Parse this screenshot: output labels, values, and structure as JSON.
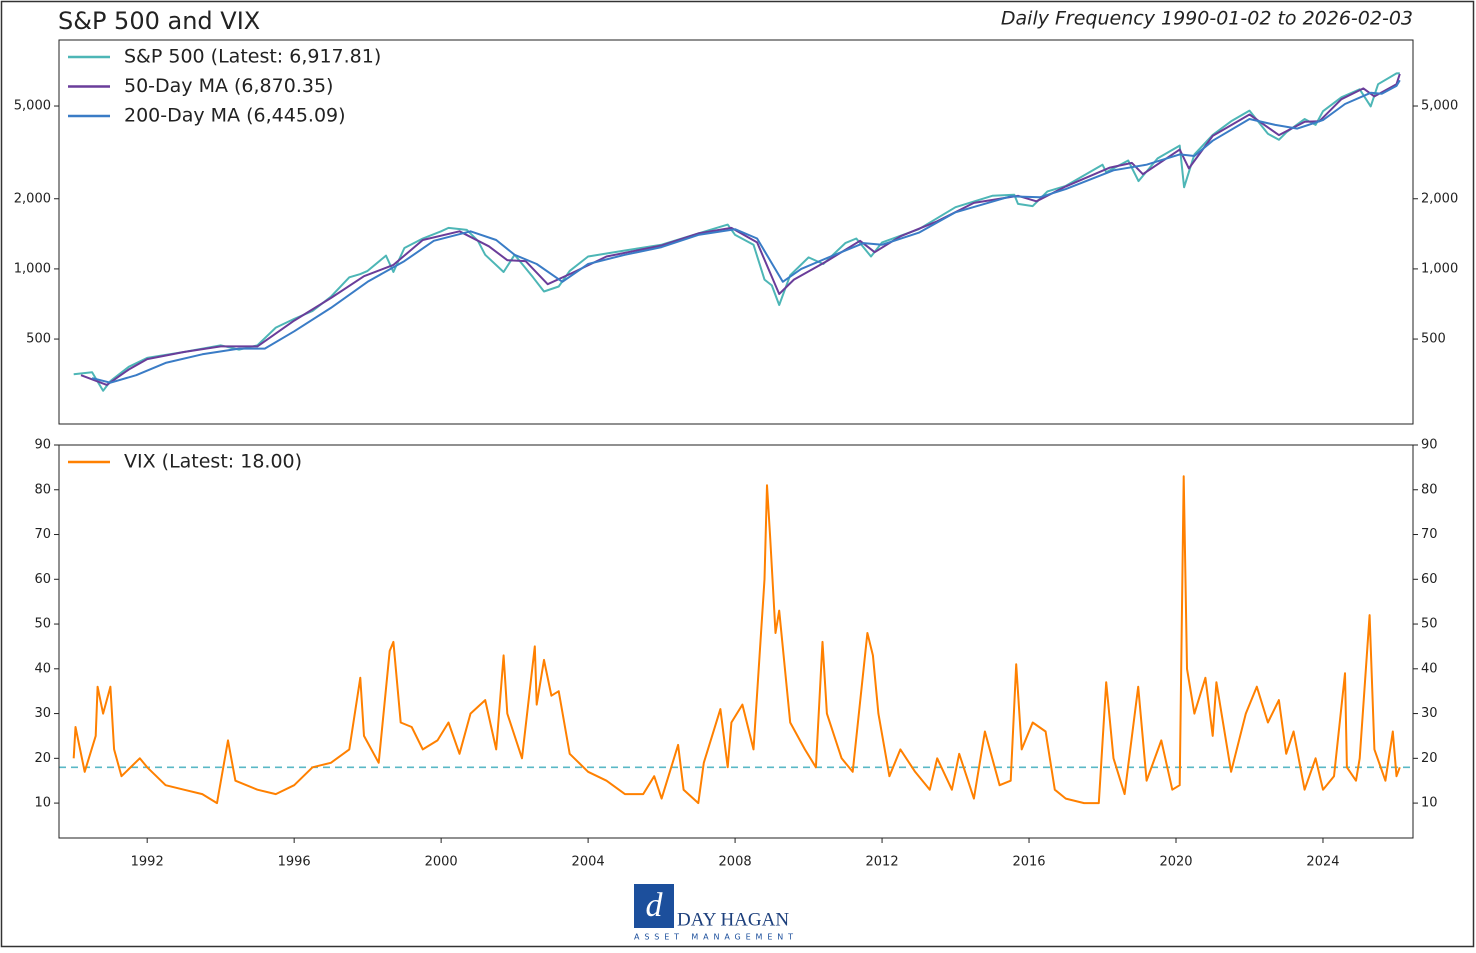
{
  "chart_data": [
    {
      "type": "line",
      "title": "S&P 500 and VIX",
      "subtitle": "Daily Frequency 1990-01-02 to 2026-02-03",
      "log_scale": true,
      "legend": "upper left",
      "xlim": [
        1989.6,
        2026.45
      ],
      "ylim": [
        216,
        9600
      ],
      "yticks": [
        500,
        {
          "value": 1000,
          "label": "1,000"
        },
        {
          "value": 2000,
          "label": "2,000"
        },
        {
          "value": 5000,
          "label": "5,000"
        }
      ],
      "series": [
        {
          "name": "S&P 500 (Latest: 6,917.81)",
          "color": "#4db6b6",
          "x": [
            1990.0,
            1990.5,
            1990.8,
            1991.0,
            1991.5,
            1992.0,
            1993.0,
            1994.0,
            1994.5,
            1995.0,
            1995.5,
            1996.0,
            1996.5,
            1997.0,
            1997.5,
            1997.8,
            1998.0,
            1998.5,
            1998.7,
            1999.0,
            1999.5,
            2000.0,
            2000.2,
            2000.7,
            2001.0,
            2001.2,
            2001.7,
            2002.0,
            2002.5,
            2002.8,
            2003.2,
            2003.5,
            2004.0,
            2005.0,
            2006.0,
            2007.0,
            2007.8,
            2008.0,
            2008.5,
            2008.8,
            2009.0,
            2009.2,
            2009.5,
            2010.0,
            2010.4,
            2011.0,
            2011.3,
            2011.7,
            2012.0,
            2013.0,
            2014.0,
            2015.0,
            2015.6,
            2015.7,
            2016.1,
            2016.5,
            2017.0,
            2018.0,
            2018.1,
            2018.7,
            2018.98,
            2019.5,
            2020.1,
            2020.22,
            2020.5,
            2021.0,
            2021.5,
            2022.0,
            2022.5,
            2022.8,
            2023.0,
            2023.5,
            2023.8,
            2024.0,
            2024.5,
            2025.0,
            2025.3,
            2025.5,
            2026.0,
            2026.09
          ],
          "values": [
            353,
            360,
            300,
            330,
            380,
            415,
            440,
            470,
            450,
            470,
            560,
            610,
            660,
            760,
            920,
            950,
            980,
            1140,
            970,
            1230,
            1350,
            1450,
            1500,
            1470,
            1320,
            1150,
            970,
            1150,
            920,
            800,
            840,
            980,
            1130,
            1200,
            1270,
            1420,
            1550,
            1400,
            1270,
            900,
            850,
            700,
            940,
            1120,
            1050,
            1290,
            1350,
            1130,
            1300,
            1480,
            1840,
            2060,
            2080,
            1900,
            1860,
            2150,
            2270,
            2800,
            2600,
            2920,
            2380,
            2980,
            3380,
            2240,
            3100,
            3760,
            4300,
            4780,
            3800,
            3580,
            3850,
            4400,
            4150,
            4750,
            5450,
            5900,
            4980,
            6200,
            6900,
            6917.81
          ]
        },
        {
          "name": "50-Day MA (6,870.35)",
          "color": "#6a3d9a",
          "x": [
            1990.2,
            1990.9,
            1991.5,
            1992.0,
            1993.0,
            1994.0,
            1995.0,
            1996.0,
            1997.0,
            1997.9,
            1998.7,
            1999.5,
            2000.5,
            2001.3,
            2001.8,
            2002.3,
            2002.9,
            2003.5,
            2004.5,
            2006.0,
            2007.0,
            2007.9,
            2008.6,
            2009.2,
            2009.6,
            2010.5,
            2011.4,
            2011.8,
            2012.5,
            2013.5,
            2014.5,
            2015.7,
            2016.2,
            2017.0,
            2018.2,
            2018.8,
            2019.1,
            2020.1,
            2020.35,
            2021.0,
            2022.0,
            2022.8,
            2023.5,
            2023.9,
            2024.5,
            2025.1,
            2025.4,
            2026.0,
            2026.09
          ],
          "values": [
            350,
            318,
            370,
            410,
            440,
            465,
            465,
            600,
            750,
            930,
            1040,
            1330,
            1450,
            1250,
            1090,
            1080,
            860,
            950,
            1130,
            1260,
            1420,
            1500,
            1300,
            780,
            900,
            1080,
            1320,
            1180,
            1380,
            1600,
            1920,
            2060,
            1950,
            2260,
            2720,
            2850,
            2550,
            3250,
            2700,
            3720,
            4600,
            3750,
            4280,
            4300,
            5350,
            5950,
            5500,
            6200,
            6870.35
          ]
        },
        {
          "name": "200-Day MA (6,445.09)",
          "color": "#3a7cc6",
          "x": [
            1990.5,
            1991.0,
            1991.7,
            1992.5,
            1993.5,
            1994.5,
            1995.2,
            1996.0,
            1997.0,
            1998.0,
            1999.0,
            1999.8,
            2000.8,
            2001.5,
            2002.0,
            2002.6,
            2003.3,
            2004.0,
            2005.0,
            2006.0,
            2007.0,
            2008.0,
            2008.6,
            2009.3,
            2009.8,
            2010.6,
            2011.5,
            2012.0,
            2013.0,
            2014.0,
            2015.5,
            2016.3,
            2017.0,
            2018.3,
            2019.2,
            2020.1,
            2020.5,
            2021.0,
            2022.0,
            2022.7,
            2023.3,
            2024.0,
            2024.6,
            2025.3,
            2025.6,
            2026.0,
            2026.09
          ],
          "values": [
            340,
            325,
            350,
            395,
            430,
            455,
            455,
            540,
            680,
            880,
            1080,
            1320,
            1450,
            1330,
            1150,
            1050,
            880,
            1050,
            1150,
            1240,
            1400,
            1480,
            1350,
            880,
            1000,
            1130,
            1290,
            1270,
            1430,
            1750,
            2050,
            2030,
            2200,
            2650,
            2800,
            3100,
            3050,
            3550,
            4400,
            4150,
            4000,
            4350,
            5100,
            5700,
            5650,
            6100,
            6445.09
          ]
        }
      ]
    },
    {
      "type": "line",
      "legend": "upper left",
      "xlim": [
        1989.6,
        2026.45
      ],
      "xticks": [
        1992,
        1996,
        2000,
        2004,
        2008,
        2012,
        2016,
        2020,
        2024
      ],
      "ylim": [
        2.2,
        90
      ],
      "yticks": [
        10,
        20,
        30,
        40,
        50,
        60,
        70,
        80,
        90
      ],
      "hline": 18,
      "hline_color": "#5ab8c6",
      "series": [
        {
          "name": "VIX (Latest: 18.00)",
          "color": "#ff8000",
          "x": [
            1990.0,
            1990.05,
            1990.3,
            1990.6,
            1990.65,
            1990.8,
            1991.0,
            1991.1,
            1991.3,
            1991.8,
            1992.0,
            1992.5,
            1993.0,
            1993.5,
            1993.9,
            1994.2,
            1994.4,
            1995.0,
            1995.5,
            1996.0,
            1996.5,
            1997.0,
            1997.5,
            1997.8,
            1997.9,
            1998.3,
            1998.6,
            1998.7,
            1998.9,
            1999.2,
            1999.5,
            1999.9,
            2000.2,
            2000.5,
            2000.8,
            2001.2,
            2001.5,
            2001.7,
            2001.8,
            2002.2,
            2002.55,
            2002.6,
            2002.8,
            2003.0,
            2003.2,
            2003.5,
            2004.0,
            2004.5,
            2005.0,
            2005.5,
            2005.8,
            2006.0,
            2006.45,
            2006.6,
            2007.0,
            2007.15,
            2007.6,
            2007.8,
            2007.9,
            2008.2,
            2008.5,
            2008.8,
            2008.87,
            2008.95,
            2009.1,
            2009.2,
            2009.5,
            2009.9,
            2010.2,
            2010.38,
            2010.5,
            2010.9,
            2011.2,
            2011.6,
            2011.75,
            2011.9,
            2012.2,
            2012.5,
            2012.9,
            2013.3,
            2013.5,
            2013.9,
            2014.1,
            2014.5,
            2014.8,
            2015.2,
            2015.5,
            2015.65,
            2015.8,
            2016.1,
            2016.45,
            2016.7,
            2017.0,
            2017.5,
            2017.9,
            2018.1,
            2018.3,
            2018.6,
            2018.97,
            2019.2,
            2019.6,
            2019.9,
            2020.1,
            2020.21,
            2020.3,
            2020.5,
            2020.8,
            2021.0,
            2021.1,
            2021.5,
            2021.9,
            2022.2,
            2022.5,
            2022.8,
            2023.0,
            2023.2,
            2023.5,
            2023.8,
            2024.0,
            2024.3,
            2024.6,
            2024.65,
            2024.9,
            2025.0,
            2025.27,
            2025.4,
            2025.7,
            2025.9,
            2026.0,
            2026.09
          ],
          "values": [
            20,
            27,
            17,
            25,
            36,
            30,
            36,
            22,
            16,
            20,
            18,
            14,
            13,
            12,
            10,
            24,
            15,
            13,
            12,
            14,
            18,
            19,
            22,
            38,
            25,
            19,
            44,
            46,
            28,
            27,
            22,
            24,
            28,
            21,
            30,
            33,
            22,
            43,
            30,
            20,
            45,
            32,
            42,
            34,
            35,
            21,
            17,
            15,
            12,
            12,
            16,
            11,
            23,
            13,
            10,
            19,
            31,
            18,
            28,
            32,
            22,
            60,
            81,
            70,
            48,
            53,
            28,
            22,
            18,
            46,
            30,
            20,
            17,
            48,
            43,
            30,
            16,
            22,
            17,
            13,
            20,
            13,
            21,
            11,
            26,
            14,
            15,
            41,
            22,
            28,
            26,
            13,
            11,
            10,
            10,
            37,
            20,
            12,
            36,
            15,
            24,
            13,
            14,
            83,
            40,
            30,
            38,
            25,
            37,
            17,
            30,
            36,
            28,
            33,
            21,
            26,
            13,
            20,
            13,
            16,
            39,
            18,
            15,
            20,
            52,
            22,
            15,
            26,
            16,
            18
          ]
        }
      ]
    }
  ],
  "logo": {
    "name": "DAY HAGAN",
    "tagline": "ASSET MANAGEMENT"
  }
}
